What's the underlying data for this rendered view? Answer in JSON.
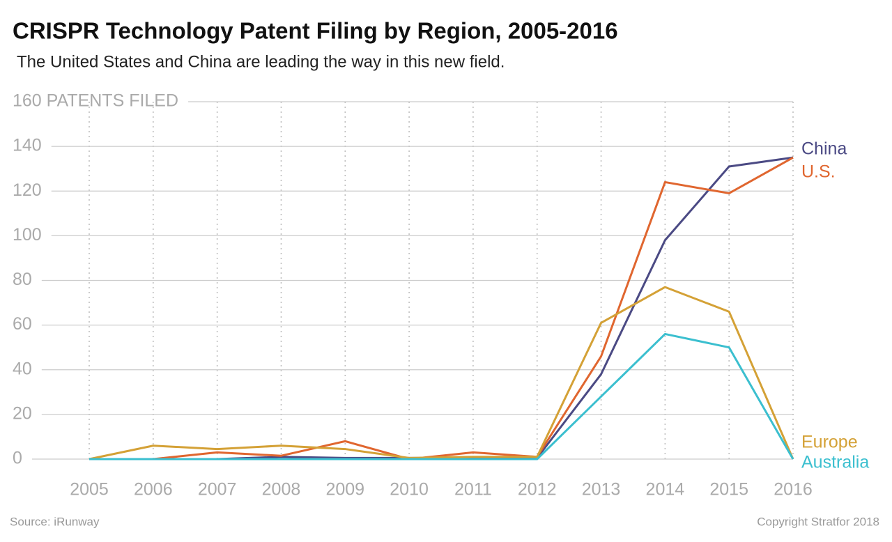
{
  "chart_data": {
    "type": "line",
    "title": "CRISPR Technology Patent Filing by Region, 2005-2016",
    "subtitle": "The United States and China are leading the way in this new field.",
    "categories": [
      "2005",
      "2006",
      "2007",
      "2008",
      "2009",
      "2010",
      "2011",
      "2012",
      "2013",
      "2014",
      "2015",
      "2016"
    ],
    "series": [
      {
        "name": "China",
        "color": "#4b4a84",
        "values": [
          0,
          0,
          0,
          1,
          0.5,
          0.5,
          0.5,
          0.5,
          38,
          98,
          131,
          135
        ]
      },
      {
        "name": "U.S.",
        "color": "#e0662f",
        "values": [
          0,
          0,
          3,
          1.5,
          8,
          0,
          3,
          1,
          46,
          124,
          119,
          135
        ]
      },
      {
        "name": "Europe",
        "color": "#d4a136",
        "values": [
          0,
          6,
          4.5,
          6,
          4.5,
          0.5,
          1,
          1,
          61,
          77,
          66,
          0
        ]
      },
      {
        "name": "Australia",
        "color": "#3bbfcf",
        "values": [
          0,
          0,
          0,
          0,
          0,
          0,
          0,
          0,
          28,
          56,
          50,
          0
        ]
      }
    ],
    "ylim": [
      0,
      160
    ],
    "yticks": [
      0,
      20,
      40,
      60,
      80,
      100,
      120,
      {
        "value": 140,
        "label": "140"
      },
      {
        "value": 160,
        "label": "160 PATENTS FILED"
      }
    ],
    "grid": true,
    "source": "Source: iRunway",
    "copyright": "Copyright Stratfor 2018"
  }
}
